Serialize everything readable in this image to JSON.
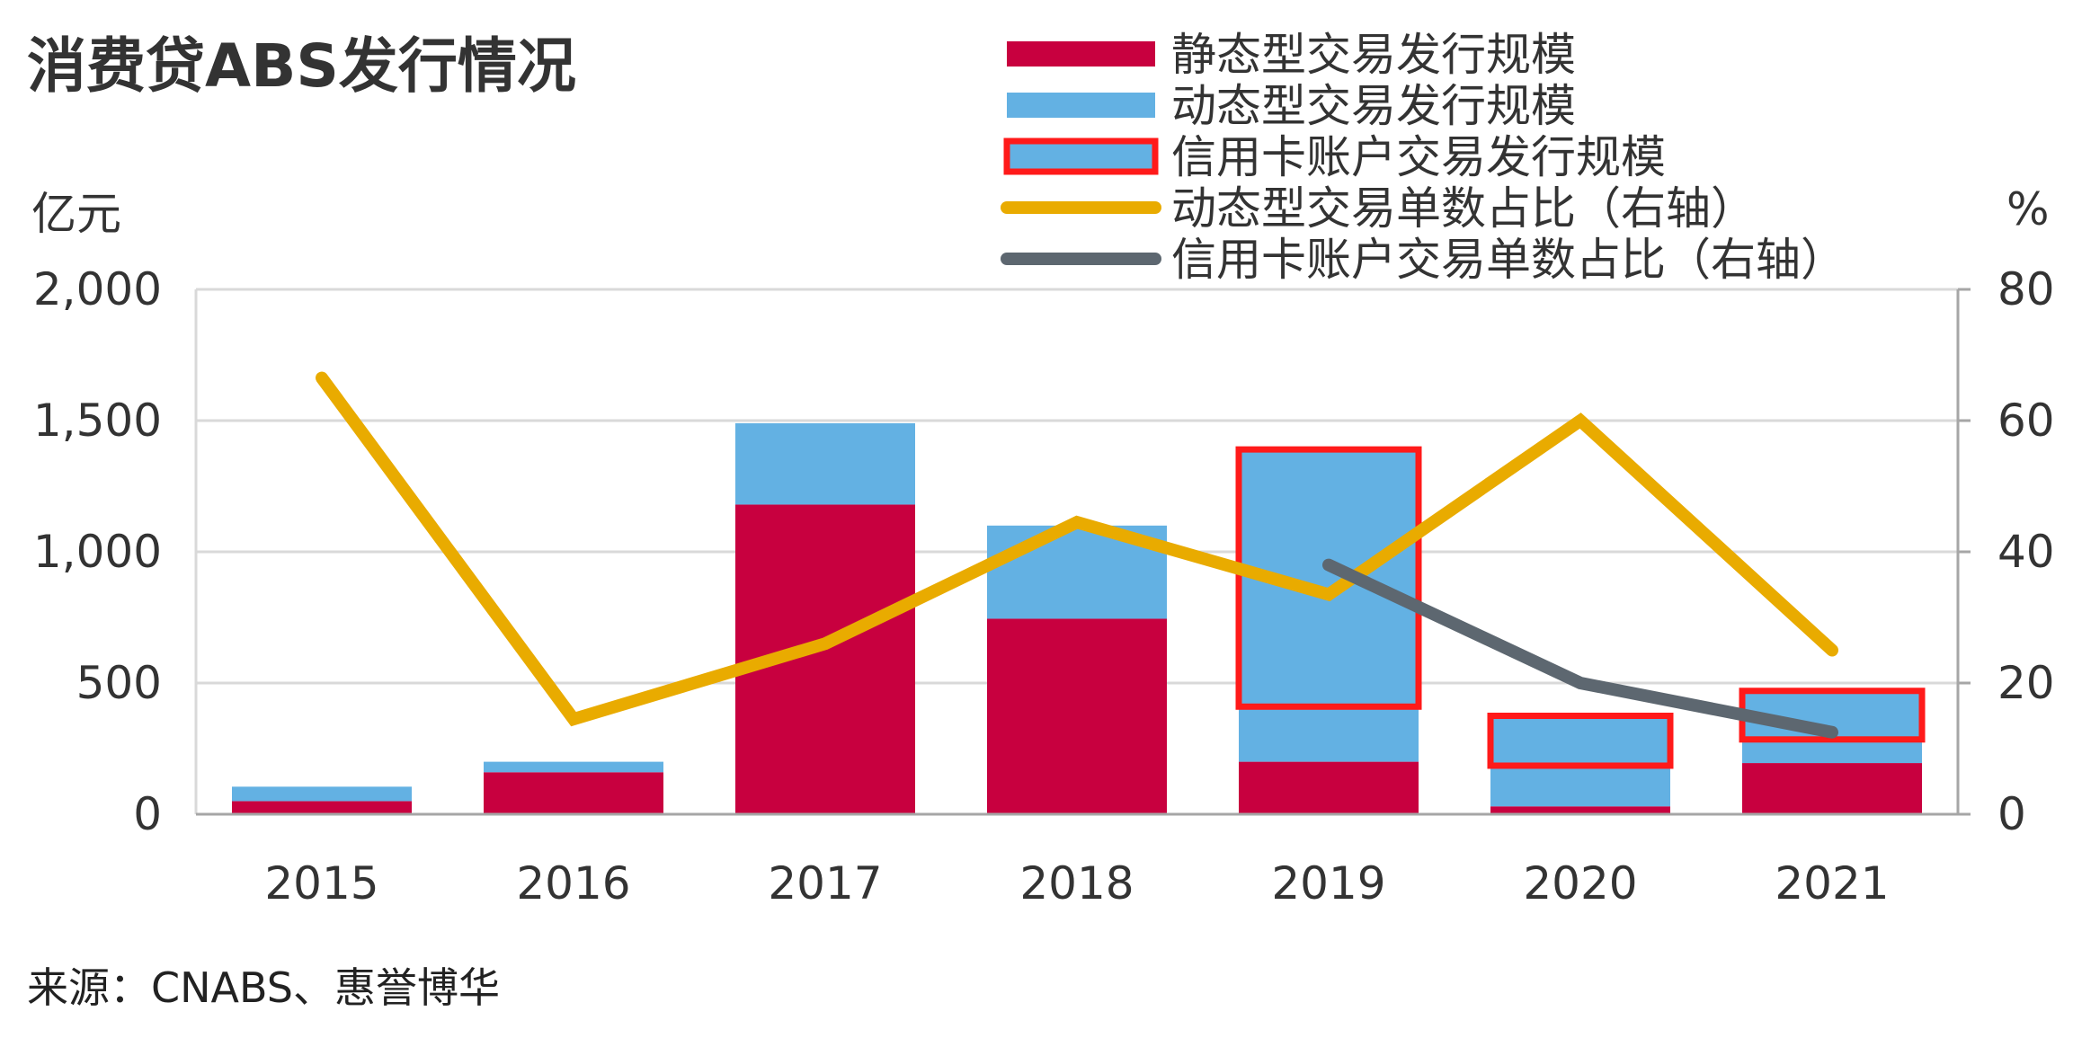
{
  "chart_data": {
    "type": "bar",
    "title": "消费贷ABS发行情况",
    "source": "来源：CNABS、惠誉博华",
    "categories": [
      "2015",
      "2016",
      "2017",
      "2018",
      "2019",
      "2020",
      "2021"
    ],
    "left_axis": {
      "unit": "亿元",
      "ylim": [
        0,
        2000
      ],
      "ticks": [
        0,
        500,
        1000,
        1500,
        2000
      ],
      "tick_labels": [
        "0",
        "500",
        "1,000",
        "1,500",
        "2,000"
      ]
    },
    "right_axis": {
      "unit": "%",
      "ylim": [
        0,
        80
      ],
      "ticks": [
        0,
        20,
        40,
        60,
        80
      ],
      "tick_labels": [
        "0",
        "20",
        "40",
        "60",
        "80"
      ]
    },
    "series": [
      {
        "name": "静态型交易发行规模",
        "kind": "stacked-bar",
        "axis": "left",
        "color": "#c8003f",
        "values": [
          50,
          160,
          1180,
          745,
          200,
          30,
          195
        ]
      },
      {
        "name": "动态型交易发行规模",
        "kind": "stacked-bar",
        "axis": "left",
        "color": "#63b1e3",
        "values": [
          55,
          40,
          310,
          355,
          1200,
          345,
          275
        ]
      },
      {
        "name": "信用卡账户交易发行规模",
        "kind": "outline",
        "axis": "left",
        "color": "#ff1a1a",
        "ranges": [
          null,
          null,
          null,
          null,
          [
            410,
            1390
          ],
          [
            185,
            375
          ],
          [
            285,
            470
          ]
        ]
      },
      {
        "name": "动态型交易单数占比（右轴）",
        "kind": "line",
        "axis": "right",
        "color": "#e9ab00",
        "values": [
          66.5,
          14.5,
          26,
          44.5,
          33.5,
          60,
          25
        ]
      },
      {
        "name": "信用卡账户交易单数占比（右轴）",
        "kind": "line",
        "axis": "right",
        "color": "#5d6770",
        "values": [
          null,
          null,
          null,
          null,
          38,
          20,
          12.5
        ]
      }
    ],
    "legend_position": "top-right",
    "grid": true
  }
}
